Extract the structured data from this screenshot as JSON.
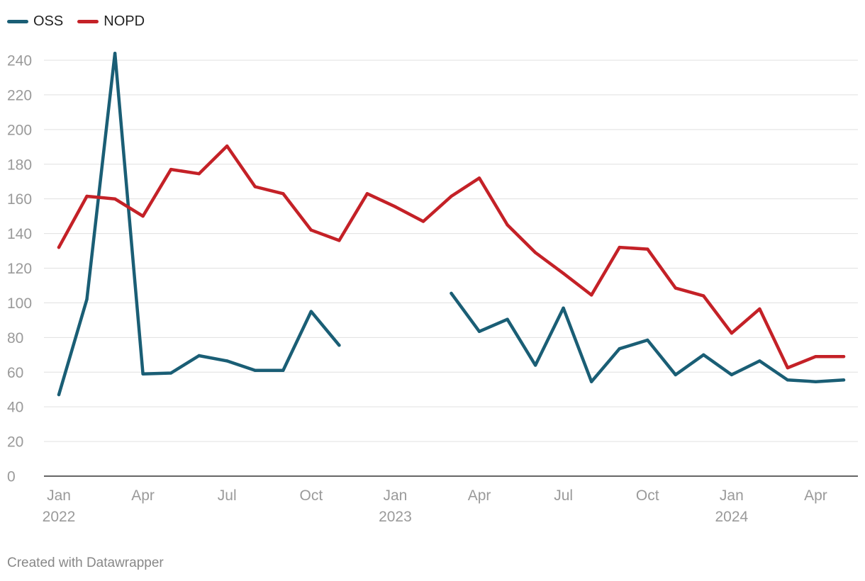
{
  "chart_data": {
    "type": "line",
    "title": "",
    "xlabel": "",
    "ylabel": "",
    "ylim": [
      0,
      245
    ],
    "yticks": [
      0,
      20,
      40,
      60,
      80,
      100,
      120,
      140,
      160,
      180,
      200,
      220,
      240
    ],
    "xlim": [
      "2022-01",
      "2024-05"
    ],
    "grid": true,
    "legend_position": "top-left",
    "x_ticks": [
      {
        "x": "2022-01",
        "label": "Jan",
        "year": "2022"
      },
      {
        "x": "2022-04",
        "label": "Apr",
        "year": ""
      },
      {
        "x": "2022-07",
        "label": "Jul",
        "year": ""
      },
      {
        "x": "2022-10",
        "label": "Oct",
        "year": ""
      },
      {
        "x": "2023-01",
        "label": "Jan",
        "year": "2023"
      },
      {
        "x": "2023-04",
        "label": "Apr",
        "year": ""
      },
      {
        "x": "2023-07",
        "label": "Jul",
        "year": ""
      },
      {
        "x": "2023-10",
        "label": "Oct",
        "year": ""
      },
      {
        "x": "2024-01",
        "label": "Jan",
        "year": "2024"
      },
      {
        "x": "2024-04",
        "label": "Apr",
        "year": ""
      }
    ],
    "x": [
      "2022-01",
      "2022-02",
      "2022-03",
      "2022-04",
      "2022-05",
      "2022-06",
      "2022-07",
      "2022-08",
      "2022-09",
      "2022-10",
      "2022-11",
      "2022-12",
      "2023-01",
      "2023-02",
      "2023-03",
      "2023-04",
      "2023-05",
      "2023-06",
      "2023-07",
      "2023-08",
      "2023-09",
      "2023-10",
      "2023-11",
      "2023-12",
      "2024-01",
      "2024-02",
      "2024-03",
      "2024-04",
      "2024-05"
    ],
    "series": [
      {
        "name": "OSS",
        "color": "#1a5e75",
        "values": [
          47,
          102,
          244,
          59,
          59.5,
          69.5,
          66.5,
          61,
          61,
          95,
          75.5,
          null,
          null,
          null,
          105.5,
          83.5,
          90.5,
          64,
          97,
          54.5,
          73.5,
          78.5,
          58.5,
          70,
          58.5,
          66.5,
          55.5,
          54.5,
          55.5
        ]
      },
      {
        "name": "NOPD",
        "color": "#c42127",
        "values": [
          132,
          161.5,
          160,
          150,
          177,
          174.5,
          190.5,
          167,
          163,
          142,
          136,
          163,
          155.5,
          147,
          161.5,
          172,
          145,
          129,
          117,
          104.5,
          132,
          131,
          108.5,
          104,
          82.5,
          96.5,
          62.5,
          69,
          69
        ]
      }
    ]
  },
  "legend": {
    "items": [
      {
        "label": "OSS",
        "color": "#1a5e75"
      },
      {
        "label": "NOPD",
        "color": "#c42127"
      }
    ]
  },
  "credit": "Created with Datawrapper"
}
